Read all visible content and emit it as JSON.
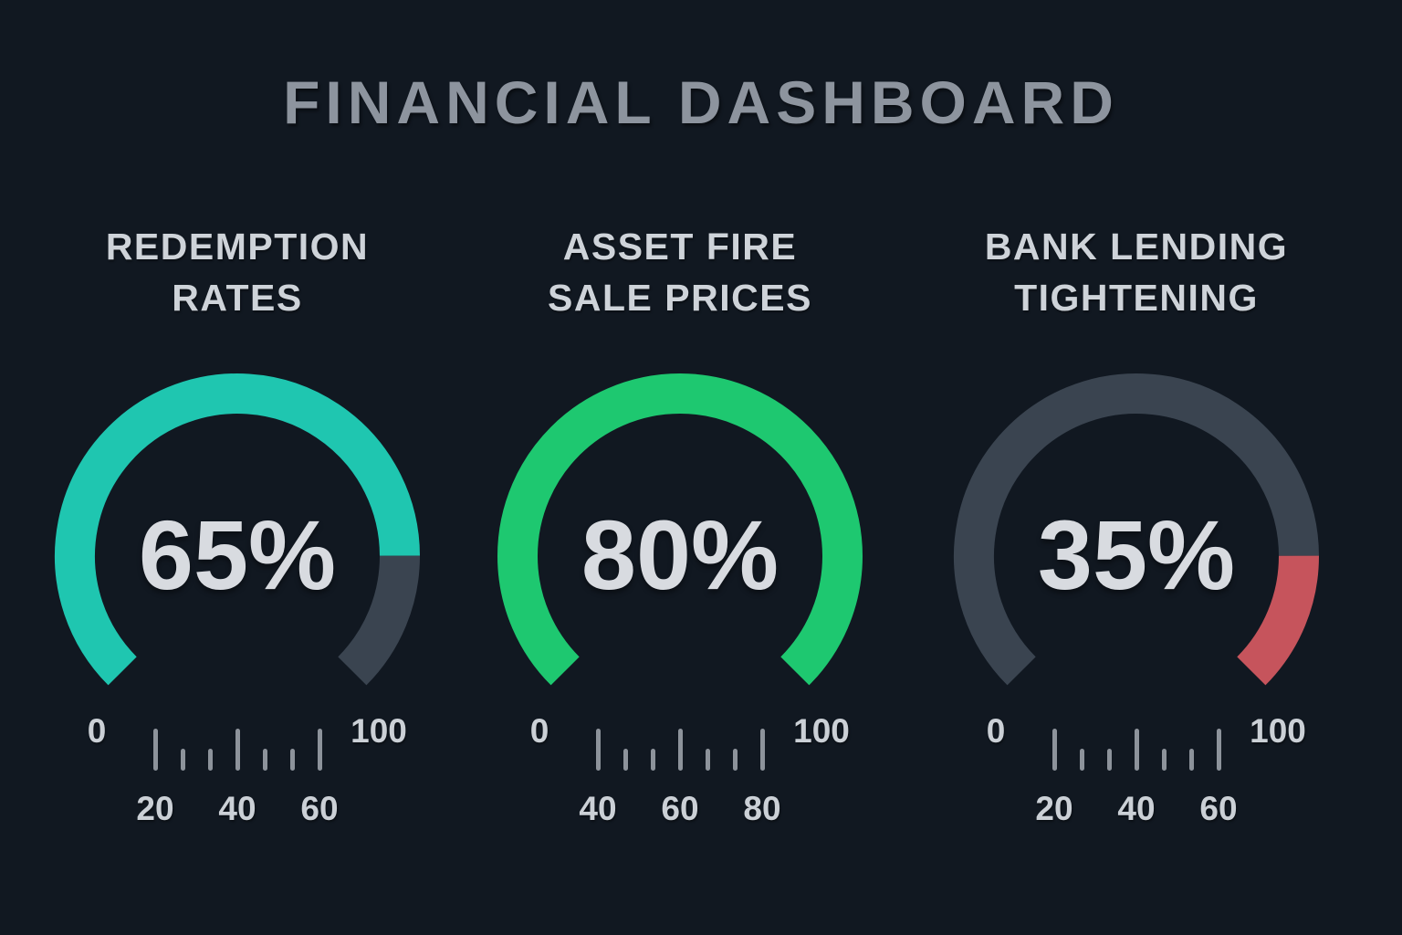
{
  "page": {
    "title": "FINANCIAL DASHBOARD"
  },
  "colors": {
    "background": "#111821",
    "title_text": "#8d949e",
    "heading_text": "#ced3d9",
    "value_text": "#d8dbe0",
    "scale_text": "#cbd0d6",
    "tick": "#8d939b",
    "teal": "#1fc6b0",
    "green": "#1ec870",
    "track_grey": "#3a4450",
    "red": "#c6545c"
  },
  "gauges": [
    {
      "id": "redemption-rates",
      "label_lines": [
        "REDEMPTION",
        "RATES"
      ],
      "value_label": "65%",
      "segments": [
        {
          "start_pct": 0,
          "end_pct": 83.3,
          "color": "#1fc6b0"
        },
        {
          "start_pct": 83.3,
          "end_pct": 100,
          "color": "#3a4450"
        }
      ],
      "scale": {
        "min_label": "0",
        "max_label": "100",
        "tick_pattern": [
          "tall",
          "short",
          "short",
          "tall",
          "short",
          "short",
          "tall"
        ],
        "tick_labels": [
          "20",
          "40",
          "60"
        ]
      }
    },
    {
      "id": "asset-fire-sale-prices",
      "label_lines": [
        "ASSET FIRE",
        "SALE PRICES"
      ],
      "value_label": "80%",
      "segments": [
        {
          "start_pct": 0,
          "end_pct": 100,
          "color": "#1ec870"
        }
      ],
      "scale": {
        "min_label": "0",
        "max_label": "100",
        "tick_pattern": [
          "tall",
          "short",
          "short",
          "tall",
          "short",
          "short",
          "tall"
        ],
        "tick_labels": [
          "40",
          "60",
          "80"
        ]
      }
    },
    {
      "id": "bank-lending-tightening",
      "label_lines": [
        "BANK LENDING",
        "TIGHTENING"
      ],
      "value_label": "35%",
      "segments": [
        {
          "start_pct": 0,
          "end_pct": 83.3,
          "color": "#3a4450"
        },
        {
          "start_pct": 83.3,
          "end_pct": 100,
          "color": "#c6545c"
        }
      ],
      "scale": {
        "min_label": "0",
        "max_label": "100",
        "tick_pattern": [
          "tall",
          "short",
          "short",
          "tall",
          "short",
          "short",
          "tall"
        ],
        "tick_labels": [
          "20",
          "40",
          "60"
        ]
      }
    }
  ],
  "chart_data": {
    "type": "gauge",
    "title": "FINANCIAL DASHBOARD",
    "arc_span_degrees": 270,
    "gauges": [
      {
        "label": "REDEMPTION RATES",
        "value_pct": 65,
        "fill_color": "#1fc6b0",
        "track_color": "#3a4450",
        "axis_range": [
          0,
          100
        ],
        "axis_labels_shown": [
          "0",
          "20",
          "40",
          "60",
          "100"
        ]
      },
      {
        "label": "ASSET FIRE SALE PRICES",
        "value_pct": 80,
        "fill_color": "#1ec870",
        "track_color": "#3a4450",
        "axis_range": [
          0,
          100
        ],
        "axis_labels_shown": [
          "0",
          "40",
          "60",
          "80",
          "100"
        ]
      },
      {
        "label": "BANK LENDING TIGHTENING",
        "value_pct": 35,
        "fill_color": "#c6545c",
        "track_color": "#3a4450",
        "axis_range": [
          0,
          100
        ],
        "axis_labels_shown": [
          "0",
          "20",
          "40",
          "60",
          "100"
        ]
      }
    ]
  }
}
